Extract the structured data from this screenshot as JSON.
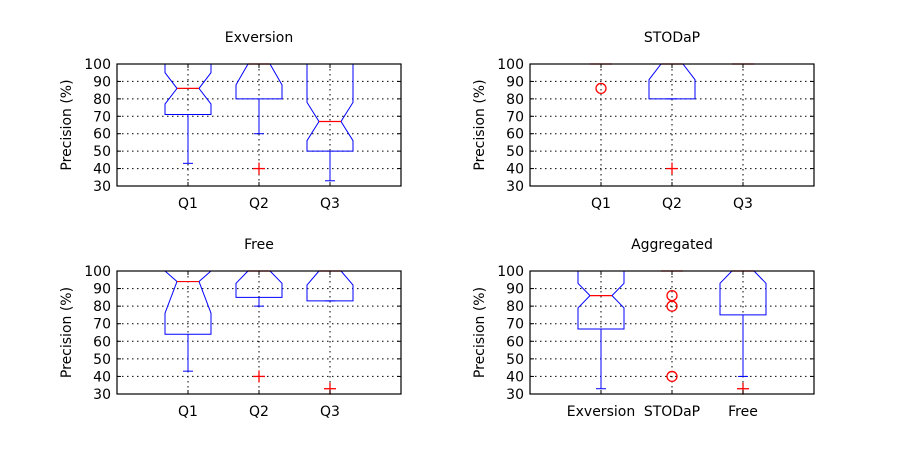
{
  "chart_data": [
    {
      "type": "box",
      "title": "Exversion",
      "ylabel": "Precision (%)",
      "ylim": [
        30,
        100
      ],
      "yticks": [
        30,
        40,
        50,
        60,
        70,
        80,
        90,
        100
      ],
      "grid": true,
      "categories": [
        "Q1",
        "Q2",
        "Q3"
      ],
      "boxes": [
        {
          "q1": 71,
          "median": 86,
          "q3": 100,
          "notch_low": 77,
          "notch_high": 95,
          "whisker_low": 43,
          "whisker_high": 100,
          "outliers": []
        },
        {
          "q1": 80,
          "median": 100,
          "q3": 100,
          "notch_low": 88,
          "notch_high": 100,
          "whisker_low": 60,
          "whisker_high": 100,
          "outliers": [
            {
              "value": 40,
              "marker": "plus"
            }
          ]
        },
        {
          "q1": 50,
          "median": 67,
          "q3": 100,
          "notch_low": 56,
          "notch_high": 78,
          "whisker_low": 33,
          "whisker_high": 100,
          "outliers": []
        }
      ]
    },
    {
      "type": "box",
      "title": "STODaP",
      "ylabel": "Precision (%)",
      "ylim": [
        30,
        100
      ],
      "yticks": [
        30,
        40,
        50,
        60,
        70,
        80,
        90,
        100
      ],
      "grid": true,
      "categories": [
        "Q1",
        "Q2",
        "Q3"
      ],
      "boxes": [
        {
          "q1": 100,
          "median": 100,
          "q3": 100,
          "notch_low": 100,
          "notch_high": 100,
          "whisker_low": 100,
          "whisker_high": 100,
          "outliers": [
            {
              "value": 86,
              "marker": "circle"
            }
          ]
        },
        {
          "q1": 80,
          "median": 100,
          "q3": 100,
          "notch_low": 91,
          "notch_high": 100,
          "whisker_low": 80,
          "whisker_high": 100,
          "outliers": [
            {
              "value": 40,
              "marker": "plus"
            }
          ]
        },
        {
          "q1": 100,
          "median": 100,
          "q3": 100,
          "notch_low": 100,
          "notch_high": 100,
          "whisker_low": 100,
          "whisker_high": 100,
          "outliers": []
        }
      ]
    },
    {
      "type": "box",
      "title": "Free",
      "ylabel": "Precision (%)",
      "ylim": [
        30,
        100
      ],
      "yticks": [
        30,
        40,
        50,
        60,
        70,
        80,
        90,
        100
      ],
      "grid": true,
      "categories": [
        "Q1",
        "Q2",
        "Q3"
      ],
      "boxes": [
        {
          "q1": 64,
          "median": 94,
          "q3": 100,
          "notch_low": 76,
          "notch_high": 100,
          "whisker_low": 43,
          "whisker_high": 100,
          "outliers": []
        },
        {
          "q1": 85,
          "median": 100,
          "q3": 100,
          "notch_low": 93,
          "notch_high": 100,
          "whisker_low": 80,
          "whisker_high": 100,
          "outliers": [
            {
              "value": 40,
              "marker": "plus"
            }
          ]
        },
        {
          "q1": 83,
          "median": 100,
          "q3": 100,
          "notch_low": 92,
          "notch_high": 100,
          "whisker_low": 83,
          "whisker_high": 100,
          "outliers": [
            {
              "value": 33,
              "marker": "plus"
            }
          ]
        }
      ]
    },
    {
      "type": "box",
      "title": "Aggregated",
      "ylabel": "Precision (%)",
      "ylim": [
        30,
        100
      ],
      "yticks": [
        30,
        40,
        50,
        60,
        70,
        80,
        90,
        100
      ],
      "grid": true,
      "categories": [
        "Exversion",
        "STODaP",
        "Free"
      ],
      "boxes": [
        {
          "q1": 67,
          "median": 86,
          "q3": 100,
          "notch_low": 79,
          "notch_high": 93,
          "whisker_low": 33,
          "whisker_high": 100,
          "outliers": []
        },
        {
          "q1": 100,
          "median": 100,
          "q3": 100,
          "notch_low": 100,
          "notch_high": 100,
          "whisker_low": 100,
          "whisker_high": 100,
          "outliers": [
            {
              "value": 86,
              "marker": "circle"
            },
            {
              "value": 80,
              "marker": "circle"
            },
            {
              "value": 40,
              "marker": "circle"
            }
          ]
        },
        {
          "q1": 75,
          "median": 100,
          "q3": 100,
          "notch_low": 93,
          "notch_high": 100,
          "whisker_low": 40,
          "whisker_high": 100,
          "outliers": [
            {
              "value": 33,
              "marker": "plus"
            }
          ]
        }
      ]
    }
  ],
  "colors": {
    "box": "#0000ff",
    "median": "#ff0000",
    "outlier": "#ff0000",
    "grid": "#000000",
    "axes": "#000000"
  }
}
